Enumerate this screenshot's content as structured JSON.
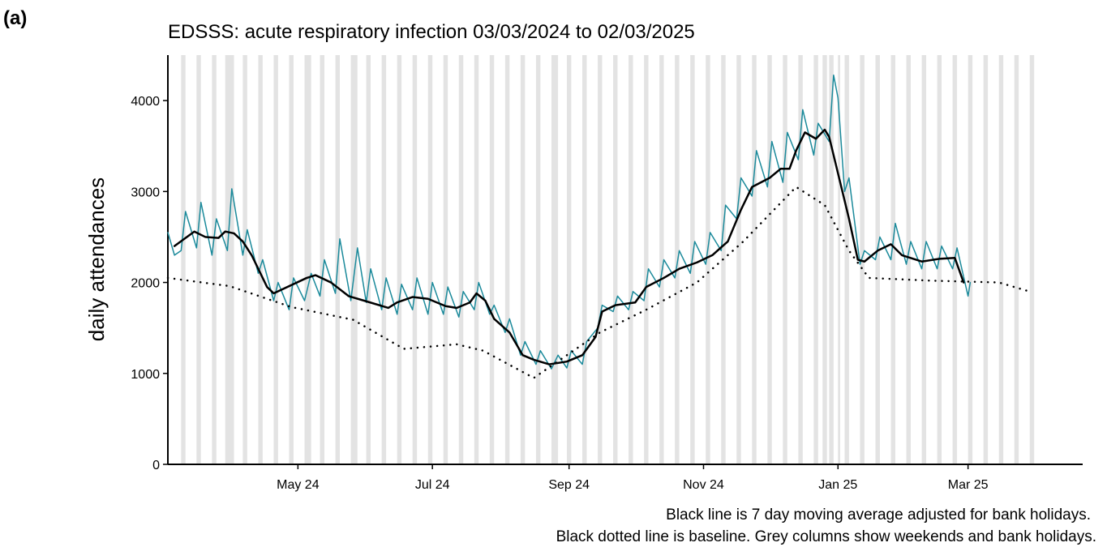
{
  "chart_data": {
    "type": "line",
    "panel_label": "(a)",
    "title": "EDSSS: acute respiratory infection 03/03/2024 to 02/03/2025",
    "y_label": "daily attendances",
    "notes": [
      "Black line is 7 day moving average adjusted for bank holidays.",
      "Black dotted line is baseline. Grey columns show weekends and bank holidays."
    ],
    "xlim": [
      "2024-03-03",
      "2025-04-22"
    ],
    "xticks": [
      {
        "value": "2024-05-01",
        "label": "May 24"
      },
      {
        "value": "2024-07-01",
        "label": "Jul 24"
      },
      {
        "value": "2024-09-01",
        "label": "Sep 24"
      },
      {
        "value": "2024-11-01",
        "label": "Nov 24"
      },
      {
        "value": "2025-01-01",
        "label": "Jan 25"
      },
      {
        "value": "2025-03-01",
        "label": "Mar 25"
      }
    ],
    "ylim": [
      0,
      4500
    ],
    "yticks": [
      0,
      1000,
      2000,
      3000,
      4000
    ],
    "grid": false,
    "shade_color": "#e3e3e3",
    "shaded_periods": [
      [
        "2024-03-09",
        "2024-03-10"
      ],
      [
        "2024-03-16",
        "2024-03-17"
      ],
      [
        "2024-03-23",
        "2024-03-24"
      ],
      [
        "2024-03-29",
        "2024-04-01"
      ],
      [
        "2024-04-06",
        "2024-04-07"
      ],
      [
        "2024-04-13",
        "2024-04-14"
      ],
      [
        "2024-04-20",
        "2024-04-21"
      ],
      [
        "2024-04-27",
        "2024-04-28"
      ],
      [
        "2024-05-04",
        "2024-05-06"
      ],
      [
        "2024-05-11",
        "2024-05-12"
      ],
      [
        "2024-05-18",
        "2024-05-19"
      ],
      [
        "2024-05-25",
        "2024-05-27"
      ],
      [
        "2024-06-01",
        "2024-06-02"
      ],
      [
        "2024-06-08",
        "2024-06-09"
      ],
      [
        "2024-06-15",
        "2024-06-16"
      ],
      [
        "2024-06-22",
        "2024-06-23"
      ],
      [
        "2024-06-29",
        "2024-06-30"
      ],
      [
        "2024-07-06",
        "2024-07-07"
      ],
      [
        "2024-07-13",
        "2024-07-14"
      ],
      [
        "2024-07-20",
        "2024-07-21"
      ],
      [
        "2024-07-27",
        "2024-07-28"
      ],
      [
        "2024-08-03",
        "2024-08-04"
      ],
      [
        "2024-08-10",
        "2024-08-11"
      ],
      [
        "2024-08-17",
        "2024-08-18"
      ],
      [
        "2024-08-24",
        "2024-08-26"
      ],
      [
        "2024-08-31",
        "2024-09-01"
      ],
      [
        "2024-09-07",
        "2024-09-08"
      ],
      [
        "2024-09-14",
        "2024-09-15"
      ],
      [
        "2024-09-21",
        "2024-09-22"
      ],
      [
        "2024-09-28",
        "2024-09-29"
      ],
      [
        "2024-10-05",
        "2024-10-06"
      ],
      [
        "2024-10-12",
        "2024-10-13"
      ],
      [
        "2024-10-19",
        "2024-10-20"
      ],
      [
        "2024-10-26",
        "2024-10-27"
      ],
      [
        "2024-11-02",
        "2024-11-03"
      ],
      [
        "2024-11-09",
        "2024-11-10"
      ],
      [
        "2024-11-16",
        "2024-11-17"
      ],
      [
        "2024-11-23",
        "2024-11-24"
      ],
      [
        "2024-11-30",
        "2024-12-01"
      ],
      [
        "2024-12-07",
        "2024-12-08"
      ],
      [
        "2024-12-14",
        "2024-12-15"
      ],
      [
        "2024-12-21",
        "2024-12-22"
      ],
      [
        "2024-12-25",
        "2024-12-26"
      ],
      [
        "2024-12-28",
        "2024-12-29"
      ],
      [
        "2025-01-01",
        "2025-01-01"
      ],
      [
        "2025-01-04",
        "2025-01-05"
      ],
      [
        "2025-01-11",
        "2025-01-12"
      ],
      [
        "2025-01-18",
        "2025-01-19"
      ],
      [
        "2025-01-25",
        "2025-01-26"
      ],
      [
        "2025-02-01",
        "2025-02-02"
      ],
      [
        "2025-02-08",
        "2025-02-09"
      ],
      [
        "2025-02-15",
        "2025-02-16"
      ],
      [
        "2025-02-22",
        "2025-02-23"
      ],
      [
        "2025-03-01",
        "2025-03-02"
      ],
      [
        "2025-03-08",
        "2025-03-09"
      ],
      [
        "2025-03-15",
        "2025-03-16"
      ],
      [
        "2025-03-22",
        "2025-03-23"
      ],
      [
        "2025-03-29",
        "2025-03-30"
      ]
    ],
    "series": [
      {
        "color": "#1b8a9b",
        "style": "solid",
        "width": 1.5,
        "x": [
          "2024-03-03",
          "2024-03-06",
          "2024-03-09",
          "2024-03-11",
          "2024-03-16",
          "2024-03-18",
          "2024-03-23",
          "2024-03-25",
          "2024-03-30",
          "2024-04-01",
          "2024-04-06",
          "2024-04-08",
          "2024-04-13",
          "2024-04-15",
          "2024-04-20",
          "2024-04-22",
          "2024-04-27",
          "2024-04-29",
          "2024-05-04",
          "2024-05-07",
          "2024-05-11",
          "2024-05-13",
          "2024-05-18",
          "2024-05-20",
          "2024-05-25",
          "2024-05-28",
          "2024-06-01",
          "2024-06-03",
          "2024-06-08",
          "2024-06-10",
          "2024-06-15",
          "2024-06-17",
          "2024-06-22",
          "2024-06-24",
          "2024-06-29",
          "2024-07-01",
          "2024-07-06",
          "2024-07-08",
          "2024-07-13",
          "2024-07-15",
          "2024-07-20",
          "2024-07-22",
          "2024-07-27",
          "2024-07-29",
          "2024-08-03",
          "2024-08-05",
          "2024-08-10",
          "2024-08-12",
          "2024-08-17",
          "2024-08-19",
          "2024-08-24",
          "2024-08-27",
          "2024-08-31",
          "2024-09-02",
          "2024-09-07",
          "2024-09-09",
          "2024-09-14",
          "2024-09-16",
          "2024-09-21",
          "2024-09-23",
          "2024-09-28",
          "2024-09-30",
          "2024-10-05",
          "2024-10-07",
          "2024-10-12",
          "2024-10-14",
          "2024-10-19",
          "2024-10-21",
          "2024-10-26",
          "2024-10-28",
          "2024-11-02",
          "2024-11-04",
          "2024-11-09",
          "2024-11-11",
          "2024-11-16",
          "2024-11-18",
          "2024-11-23",
          "2024-11-25",
          "2024-11-30",
          "2024-12-02",
          "2024-12-07",
          "2024-12-09",
          "2024-12-14",
          "2024-12-16",
          "2024-12-21",
          "2024-12-23",
          "2024-12-28",
          "2024-12-30",
          "2025-01-01",
          "2025-01-04",
          "2025-01-06",
          "2025-01-11",
          "2025-01-13",
          "2025-01-18",
          "2025-01-20",
          "2025-01-25",
          "2025-01-27",
          "2025-02-01",
          "2025-02-03",
          "2025-02-08",
          "2025-02-10",
          "2025-02-15",
          "2025-02-17",
          "2025-02-22",
          "2025-02-24",
          "2025-03-01",
          "2025-03-02"
        ],
        "values": [
          2550,
          2300,
          2350,
          2780,
          2380,
          2880,
          2300,
          2700,
          2350,
          3030,
          2300,
          2580,
          2100,
          2250,
          1800,
          2000,
          1700,
          2050,
          1800,
          2100,
          1850,
          2250,
          1880,
          2480,
          1800,
          2380,
          1780,
          2150,
          1700,
          2050,
          1650,
          1980,
          1700,
          2050,
          1650,
          2000,
          1650,
          1950,
          1620,
          1900,
          1700,
          2000,
          1650,
          1750,
          1450,
          1600,
          1200,
          1350,
          1100,
          1250,
          1050,
          1200,
          1060,
          1250,
          1100,
          1350,
          1500,
          1750,
          1680,
          1850,
          1700,
          1900,
          1800,
          2150,
          1950,
          2250,
          2050,
          2350,
          2100,
          2450,
          2200,
          2550,
          2350,
          2850,
          2700,
          3150,
          2950,
          3450,
          3050,
          3550,
          3100,
          3650,
          3350,
          3900,
          3400,
          3750,
          3550,
          4280,
          4030,
          3000,
          3150,
          2200,
          2350,
          2250,
          2500,
          2250,
          2650,
          2200,
          2450,
          2150,
          2450,
          2150,
          2400,
          2150,
          2380,
          1850,
          2000
        ]
      },
      {
        "color": "#000000",
        "style": "solid",
        "width": 2.5,
        "x": [
          "2024-03-06",
          "2024-03-15",
          "2024-03-20",
          "2024-03-26",
          "2024-03-29",
          "2024-04-02",
          "2024-04-06",
          "2024-04-10",
          "2024-04-14",
          "2024-04-17",
          "2024-04-20",
          "2024-05-05",
          "2024-05-09",
          "2024-05-16",
          "2024-05-24",
          "2024-05-31",
          "2024-06-11",
          "2024-06-15",
          "2024-06-22",
          "2024-06-29",
          "2024-07-07",
          "2024-07-12",
          "2024-07-18",
          "2024-07-21",
          "2024-07-25",
          "2024-07-29",
          "2024-08-05",
          "2024-08-11",
          "2024-08-16",
          "2024-08-23",
          "2024-08-31",
          "2024-09-07",
          "2024-09-13",
          "2024-09-16",
          "2024-09-22",
          "2024-10-01",
          "2024-10-06",
          "2024-10-14",
          "2024-10-21",
          "2024-10-29",
          "2024-11-05",
          "2024-11-12",
          "2024-11-18",
          "2024-11-23",
          "2024-12-01",
          "2024-12-06",
          "2024-12-10",
          "2024-12-13",
          "2024-12-17",
          "2024-12-22",
          "2024-12-26",
          "2024-12-28",
          "2025-01-01",
          "2025-01-06",
          "2025-01-10",
          "2025-01-13",
          "2025-01-19",
          "2025-01-25",
          "2025-01-30",
          "2025-02-08",
          "2025-02-16",
          "2025-02-23",
          "2025-02-27"
        ],
        "values": [
          2400,
          2560,
          2500,
          2490,
          2560,
          2540,
          2450,
          2300,
          2100,
          1950,
          1880,
          2050,
          2080,
          2000,
          1850,
          1800,
          1720,
          1780,
          1840,
          1820,
          1740,
          1720,
          1780,
          1880,
          1800,
          1600,
          1450,
          1200,
          1150,
          1100,
          1130,
          1200,
          1400,
          1680,
          1750,
          1780,
          1950,
          2050,
          2150,
          2220,
          2300,
          2450,
          2800,
          3050,
          3150,
          3250,
          3250,
          3450,
          3650,
          3580,
          3680,
          3600,
          3200,
          2700,
          2250,
          2230,
          2350,
          2420,
          2300,
          2230,
          2260,
          2270,
          2000
        ]
      },
      {
        "color": "#000000",
        "style": "dotted",
        "width": 2.5,
        "x": [
          "2024-03-03",
          "2024-03-31",
          "2024-04-28",
          "2024-05-26",
          "2024-06-18",
          "2024-07-12",
          "2024-07-24",
          "2024-08-16",
          "2024-08-31",
          "2024-09-15",
          "2024-10-06",
          "2024-10-29",
          "2024-11-19",
          "2024-12-13",
          "2024-12-26",
          "2025-01-06",
          "2025-01-15",
          "2025-02-12",
          "2025-03-15",
          "2025-03-29"
        ],
        "values": [
          2050,
          1960,
          1730,
          1590,
          1270,
          1320,
          1250,
          950,
          1200,
          1450,
          1700,
          2000,
          2450,
          3050,
          2850,
          2350,
          2050,
          2020,
          2000,
          1900
        ]
      }
    ]
  }
}
